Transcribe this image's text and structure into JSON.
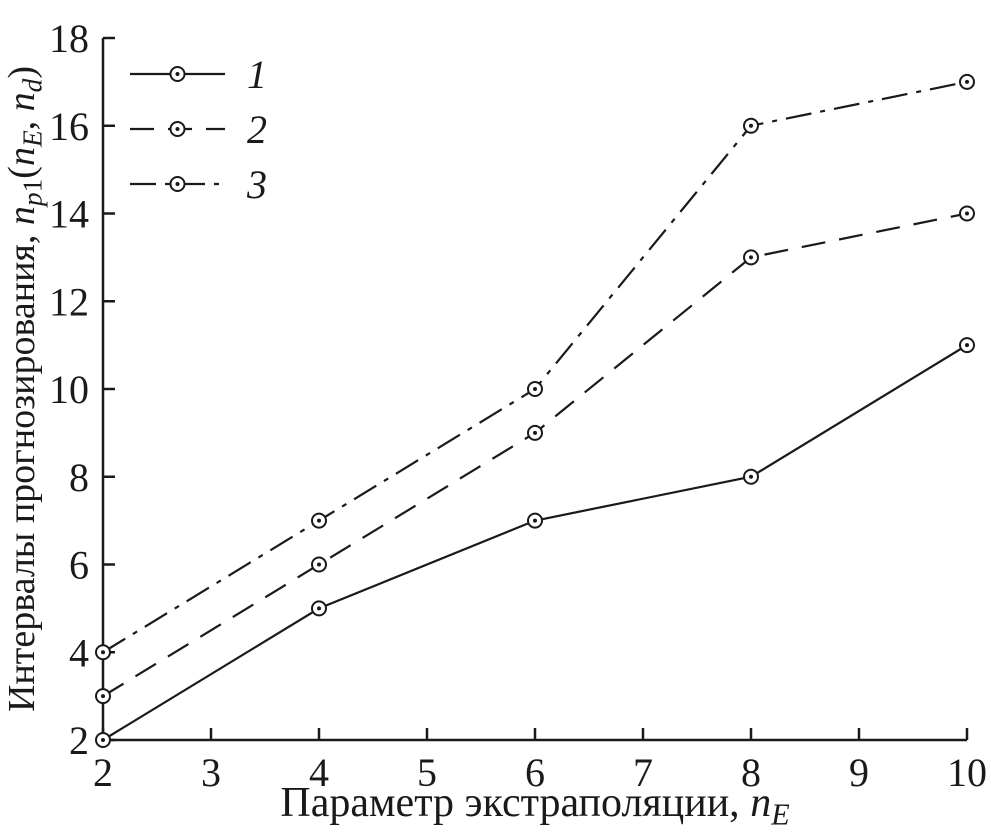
{
  "chart_data": {
    "type": "line",
    "x": [
      2,
      4,
      6,
      8,
      10
    ],
    "series": [
      {
        "name": "1",
        "values": [
          2,
          5,
          7,
          8,
          11
        ],
        "style": "solid"
      },
      {
        "name": "2",
        "values": [
          3,
          6,
          9,
          13,
          14
        ],
        "style": "dashed"
      },
      {
        "name": "3",
        "values": [
          4,
          7,
          10,
          16,
          17
        ],
        "style": "dashdot"
      }
    ],
    "xlim": [
      2,
      10
    ],
    "ylim": [
      2,
      18
    ],
    "xticks": [
      2,
      3,
      4,
      5,
      6,
      7,
      8,
      9,
      10
    ],
    "yticks": [
      2,
      4,
      6,
      8,
      10,
      12,
      14,
      16,
      18
    ],
    "xlabel_parts": [
      {
        "t": "Параметр экстраполяции, "
      },
      {
        "t": "n",
        "i": true
      },
      {
        "t": "E",
        "sub": true,
        "i": true
      }
    ],
    "ylabel_parts": [
      {
        "t": "Интервалы прогнозирования, "
      },
      {
        "t": "n",
        "i": true
      },
      {
        "t": "p",
        "sub": true,
        "i": true
      },
      {
        "t": "1",
        "sub": true
      },
      {
        "t": "("
      },
      {
        "t": "n",
        "i": true
      },
      {
        "t": "E",
        "sub": true,
        "i": true
      },
      {
        "t": ", "
      },
      {
        "t": "n",
        "i": true
      },
      {
        "t": "d",
        "sub": true,
        "i": true
      },
      {
        "t": ")"
      }
    ],
    "legend_position": "top-left",
    "legend_entries": [
      "1",
      "2",
      "3"
    ],
    "line_color": "#1a1a1a",
    "marker": "circle-dot",
    "grid": false
  }
}
